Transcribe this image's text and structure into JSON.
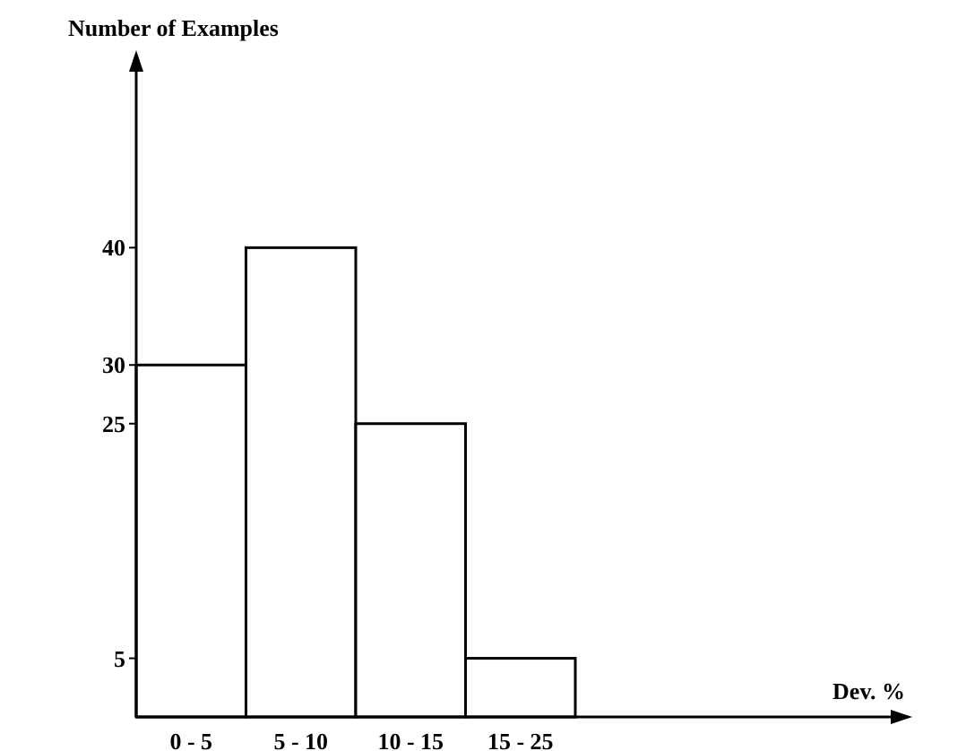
{
  "chart_data": {
    "type": "bar",
    "ylabel": "Number of Examples",
    "annotations": [
      "Dev. %"
    ],
    "categories": [
      "0 - 5",
      "5 - 10",
      "10 - 15",
      "15 - 25"
    ],
    "values": [
      30,
      40,
      25,
      5
    ],
    "color": "#ffffff",
    "ylim": [
      0,
      55
    ],
    "yticks": [
      5,
      25,
      30,
      40
    ],
    "grid": false
  }
}
